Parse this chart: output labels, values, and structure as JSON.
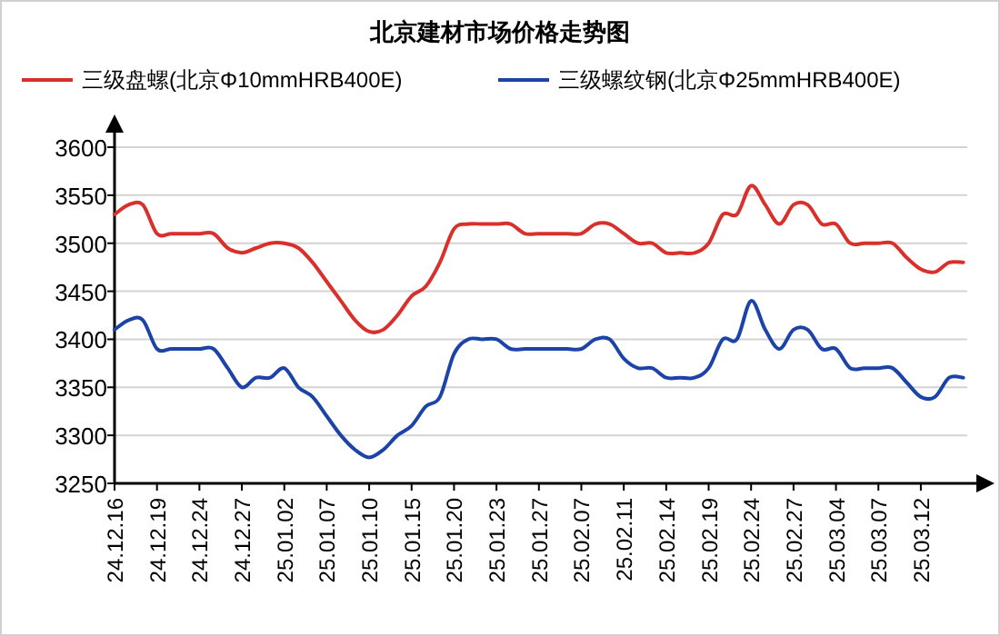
{
  "chart_data": {
    "type": "line",
    "title": "北京建材市场价格走势图",
    "categories": [
      "24.12.16",
      null,
      null,
      "24.12.19",
      null,
      null,
      "24.12.24",
      null,
      null,
      "24.12.27",
      null,
      null,
      "25.01.02",
      null,
      null,
      "25.01.07",
      null,
      null,
      "25.01.10",
      null,
      null,
      "25.01.15",
      null,
      null,
      "25.01.20",
      null,
      null,
      "25.01.23",
      null,
      null,
      "25.01.27",
      null,
      null,
      "25.02.07",
      null,
      null,
      "25.02.11",
      null,
      null,
      "25.02.14",
      null,
      null,
      "25.02.19",
      null,
      null,
      "25.02.24",
      null,
      null,
      "25.02.27",
      null,
      null,
      "25.03.04",
      null,
      null,
      "25.03.07",
      null,
      null,
      "25.03.12",
      null,
      null,
      null
    ],
    "series": [
      {
        "name": "三级盘螺(北京Φ10mmHRB400E)",
        "color": "#d9302c",
        "values": [
          3530,
          3540,
          3540,
          3510,
          3510,
          3510,
          3510,
          3510,
          3495,
          3490,
          3495,
          3500,
          3500,
          3495,
          3480,
          3460,
          3440,
          3420,
          3408,
          3410,
          3425,
          3445,
          3455,
          3480,
          3515,
          3520,
          3520,
          3520,
          3520,
          3510,
          3510,
          3510,
          3510,
          3510,
          3520,
          3520,
          3510,
          3500,
          3500,
          3490,
          3490,
          3490,
          3500,
          3530,
          3530,
          3560,
          3540,
          3520,
          3540,
          3540,
          3520,
          3520,
          3500,
          3500,
          3500,
          3500,
          3485,
          3473,
          3470,
          3480,
          3480
        ]
      },
      {
        "name": "三级螺纹钢(北京Φ25mmHRB400E)",
        "color": "#1c44a8",
        "values": [
          3410,
          3420,
          3420,
          3390,
          3390,
          3390,
          3390,
          3390,
          3370,
          3350,
          3360,
          3360,
          3370,
          3350,
          3340,
          3320,
          3300,
          3285,
          3277,
          3285,
          3300,
          3310,
          3330,
          3340,
          3385,
          3400,
          3400,
          3400,
          3390,
          3390,
          3390,
          3390,
          3390,
          3390,
          3400,
          3400,
          3380,
          3370,
          3370,
          3360,
          3360,
          3360,
          3370,
          3400,
          3400,
          3440,
          3410,
          3390,
          3410,
          3410,
          3390,
          3390,
          3370,
          3370,
          3370,
          3370,
          3355,
          3340,
          3340,
          3360,
          3360
        ]
      }
    ],
    "ylim": [
      3250,
      3600
    ],
    "yticks": [
      3250,
      3300,
      3350,
      3400,
      3450,
      3500,
      3550,
      3600
    ],
    "grid": "y",
    "legend": "top",
    "line_style": "solid"
  }
}
